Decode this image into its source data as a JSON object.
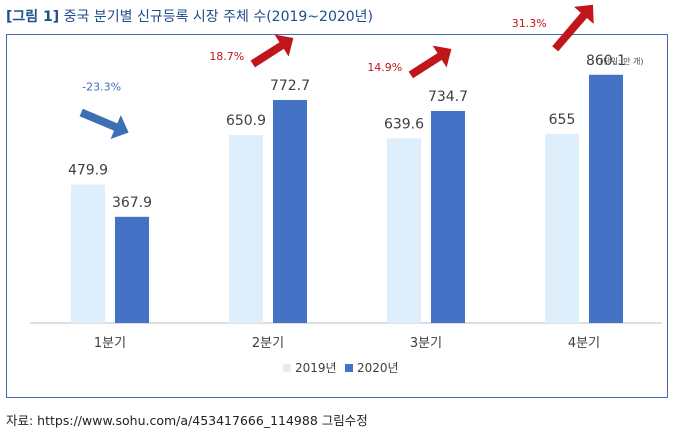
{
  "figure": {
    "tag": "[그림 1]",
    "title": "중국 분기별 신규등록 시장 주체 수(2019~2020년)",
    "unit": "(단위: 만 개)",
    "source": "자료: https://www.sohu.com/a/453417666_114988 그림수정"
  },
  "colors": {
    "series_2019": "#deeefb",
    "series_2020": "#4472c4",
    "up_arrow": "#c0161b",
    "down_arrow": "#3c6fb4",
    "frame": "#3c6fb4"
  },
  "chart_data": {
    "type": "bar",
    "categories": [
      "1분기",
      "2분기",
      "3분기",
      "4분기"
    ],
    "series": [
      {
        "name": "2019년",
        "values": [
          479.9,
          650.9,
          639.6,
          655
        ],
        "labels": [
          "479.9",
          "650.9",
          "639.6",
          "655"
        ]
      },
      {
        "name": "2020년",
        "values": [
          367.9,
          772.7,
          734.7,
          860.1
        ],
        "labels": [
          "367.9",
          "772.7",
          "734.7",
          "860.1"
        ]
      }
    ],
    "annotations": [
      {
        "category": "1분기",
        "text": "-23.3%",
        "direction": "down"
      },
      {
        "category": "2분기",
        "text": "18.7%",
        "direction": "up"
      },
      {
        "category": "3분기",
        "text": "14.9%",
        "direction": "up"
      },
      {
        "category": "4분기",
        "text": "31.3%",
        "direction": "up"
      }
    ],
    "ylim": [
      0,
      1000
    ],
    "grid": false,
    "legend": "bottom-center"
  }
}
